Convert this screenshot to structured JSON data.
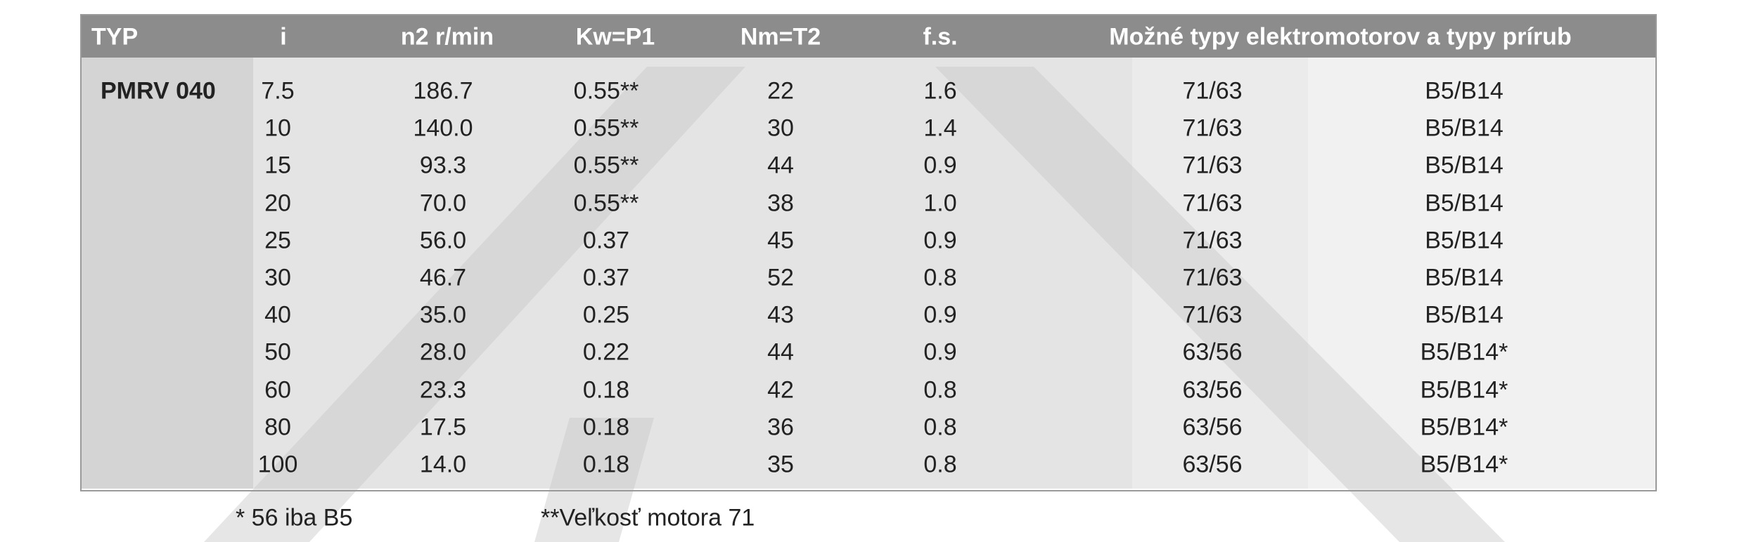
{
  "table": {
    "header": [
      "TYP",
      "i",
      "n2 r/min",
      "Kw=P1",
      "Nm=T2",
      "f.s.",
      "Možné typy elektromotorov a typy prírub"
    ],
    "group": "PMRV 040",
    "rows": [
      [
        "7.5",
        "186.7",
        "0.55**",
        "22",
        "1.6",
        "71/63",
        "B5/B14"
      ],
      [
        "10",
        "140.0",
        "0.55**",
        "30",
        "1.4",
        "71/63",
        "B5/B14"
      ],
      [
        "15",
        "93.3",
        "0.55**",
        "44",
        "0.9",
        "71/63",
        "B5/B14"
      ],
      [
        "20",
        "70.0",
        "0.55**",
        "38",
        "1.0",
        "71/63",
        "B5/B14"
      ],
      [
        "25",
        "56.0",
        "0.37",
        "45",
        "0.9",
        "71/63",
        "B5/B14"
      ],
      [
        "30",
        "46.7",
        "0.37",
        "52",
        "0.8",
        "71/63",
        "B5/B14"
      ],
      [
        "40",
        "35.0",
        "0.25",
        "43",
        "0.9",
        "71/63",
        "B5/B14"
      ],
      [
        "50",
        "28.0",
        "0.22",
        "44",
        "0.9",
        "63/56",
        "B5/B14*"
      ],
      [
        "60",
        "23.3",
        "0.18",
        "42",
        "0.8",
        "63/56",
        "B5/B14*"
      ],
      [
        "80",
        "17.5",
        "0.18",
        "36",
        "0.8",
        "63/56",
        "B5/B14*"
      ],
      [
        "100",
        "14.0",
        "0.18",
        "35",
        "0.8",
        "63/56",
        "B5/B14*"
      ]
    ]
  },
  "footnotes": [
    "* 56 iba B5",
    "**Veľkosť motora 71"
  ]
}
